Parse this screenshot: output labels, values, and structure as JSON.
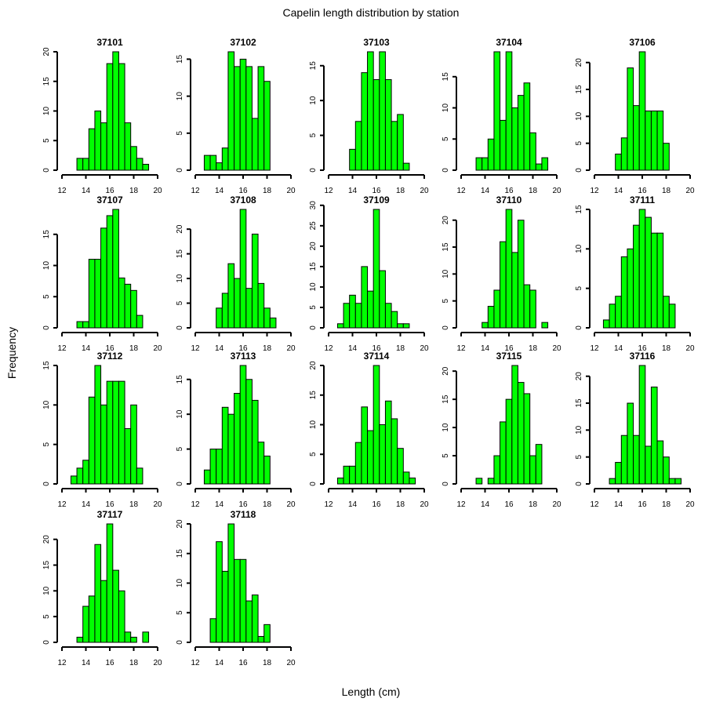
{
  "chart_data": {
    "type": "bar",
    "subtype": "histogram-grid",
    "title": "Capelin length distribution by station",
    "xlabel": "Length (cm)",
    "ylabel": "Frequency",
    "xlim": [
      12,
      20
    ],
    "xticks": [
      12,
      14,
      16,
      18,
      20
    ],
    "bin_width": 0.5,
    "bar_color": "#00ff00",
    "grid": false,
    "panels": [
      {
        "station": "37101",
        "first_bin_start": 13.25,
        "counts": [
          2,
          2,
          7,
          10,
          8,
          18,
          20,
          18,
          8,
          4,
          2,
          1
        ],
        "yticks": [
          0,
          5,
          10,
          15,
          20
        ]
      },
      {
        "station": "37102",
        "first_bin_start": 12.75,
        "counts": [
          2,
          2,
          1,
          3,
          16,
          14,
          15,
          14,
          7,
          14,
          12
        ],
        "yticks": [
          0,
          5,
          10,
          15
        ]
      },
      {
        "station": "37103",
        "first_bin_start": 13.75,
        "counts": [
          3,
          7,
          14,
          17,
          13,
          17,
          13,
          7,
          8,
          1
        ],
        "yticks": [
          0,
          5,
          10,
          15
        ]
      },
      {
        "station": "37104",
        "first_bin_start": 13.25,
        "counts": [
          2,
          2,
          5,
          19,
          8,
          19,
          10,
          12,
          14,
          6,
          1,
          2
        ],
        "yticks": [
          0,
          5,
          10,
          15
        ]
      },
      {
        "station": "37106",
        "first_bin_start": 13.75,
        "counts": [
          3,
          6,
          19,
          12,
          22,
          11,
          11,
          11,
          5
        ],
        "yticks": [
          0,
          5,
          10,
          15,
          20
        ]
      },
      {
        "station": "37107",
        "first_bin_start": 13.25,
        "counts": [
          1,
          1,
          11,
          11,
          16,
          18,
          19,
          8,
          7,
          6,
          2
        ],
        "yticks": [
          0,
          5,
          10,
          15
        ]
      },
      {
        "station": "37108",
        "first_bin_start": 13.75,
        "counts": [
          4,
          7,
          13,
          10,
          24,
          8,
          19,
          9,
          4,
          2
        ],
        "yticks": [
          0,
          5,
          10,
          15,
          20
        ]
      },
      {
        "station": "37109",
        "first_bin_start": 12.75,
        "counts": [
          1,
          6,
          8,
          6,
          15,
          9,
          29,
          14,
          6,
          4,
          1,
          1
        ],
        "yticks": [
          0,
          5,
          10,
          15,
          20,
          25,
          30
        ]
      },
      {
        "station": "37110",
        "first_bin_start": 13.75,
        "counts": [
          1,
          4,
          7,
          16,
          22,
          14,
          20,
          8,
          7,
          0,
          1
        ],
        "yticks": [
          0,
          5,
          10,
          15,
          20
        ]
      },
      {
        "station": "37111",
        "first_bin_start": 12.75,
        "counts": [
          1,
          3,
          4,
          9,
          10,
          13,
          15,
          14,
          12,
          12,
          4,
          3
        ],
        "yticks": [
          0,
          5,
          10,
          15
        ]
      },
      {
        "station": "37112",
        "first_bin_start": 12.75,
        "counts": [
          1,
          2,
          3,
          11,
          15,
          10,
          13,
          13,
          13,
          7,
          10,
          2
        ],
        "yticks": [
          0,
          5,
          10,
          15
        ]
      },
      {
        "station": "37113",
        "first_bin_start": 12.75,
        "counts": [
          2,
          5,
          5,
          11,
          10,
          13,
          17,
          15,
          12,
          6,
          4
        ],
        "yticks": [
          0,
          5,
          10,
          15
        ]
      },
      {
        "station": "37114",
        "first_bin_start": 12.75,
        "counts": [
          1,
          3,
          3,
          7,
          13,
          9,
          20,
          10,
          14,
          11,
          6,
          2,
          1
        ],
        "yticks": [
          0,
          5,
          10,
          15,
          20
        ]
      },
      {
        "station": "37115",
        "first_bin_start": 13.25,
        "counts": [
          1,
          0,
          1,
          5,
          11,
          15,
          21,
          18,
          16,
          5,
          7
        ],
        "yticks": [
          0,
          5,
          10,
          15,
          20
        ]
      },
      {
        "station": "37116",
        "first_bin_start": 13.25,
        "counts": [
          1,
          4,
          9,
          15,
          9,
          22,
          7,
          18,
          8,
          5,
          1,
          1
        ],
        "yticks": [
          0,
          5,
          10,
          15,
          20
        ]
      },
      {
        "station": "37117",
        "first_bin_start": 13.25,
        "counts": [
          1,
          7,
          9,
          19,
          12,
          23,
          14,
          10,
          2,
          1,
          0,
          2
        ],
        "yticks": [
          0,
          5,
          10,
          15,
          20
        ]
      },
      {
        "station": "37118",
        "first_bin_start": 13.25,
        "counts": [
          4,
          17,
          12,
          20,
          14,
          14,
          7,
          8,
          1,
          3
        ],
        "yticks": [
          0,
          5,
          10,
          15,
          20
        ]
      }
    ]
  }
}
